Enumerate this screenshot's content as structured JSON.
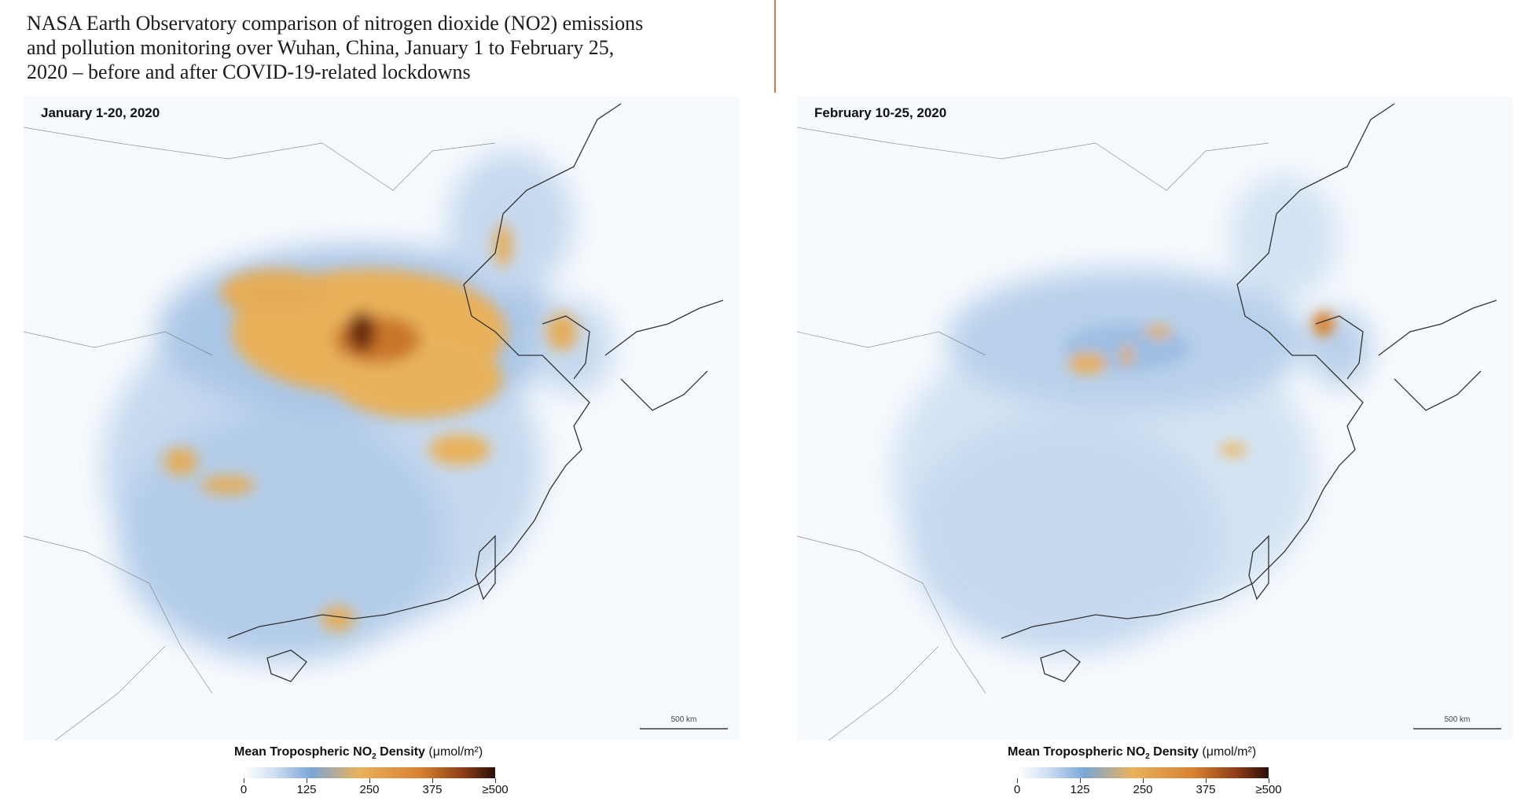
{
  "caption": {
    "line1": "NASA Earth Observatory comparison of nitrogen dioxide (NO2) emissions",
    "line2": "and pollution monitoring over Wuhan, China, January 1 to February 25,",
    "line3": "2020 – before and after COVID-19-related lockdowns"
  },
  "panels": [
    {
      "label": "January 1-20, 2020",
      "scale": "500 km",
      "legend": {
        "title_pre": "Mean Tropospheric NO",
        "title_sub": "2",
        "title_bold_end": " Density",
        "unit": " (μmol/m²)",
        "ticks": [
          "0",
          "125",
          "250",
          "375",
          "≥500"
        ]
      }
    },
    {
      "label": "February 10-25, 2020",
      "scale": "500 km",
      "legend": {
        "title_pre": "Mean Tropospheric NO",
        "title_sub": "2",
        "title_bold_end": " Density",
        "unit": " (μmol/m²)",
        "ticks": [
          "0",
          "125",
          "250",
          "375",
          "≥500"
        ]
      }
    }
  ],
  "colors": {
    "low": "#ffffff",
    "mid": "#7aa6d6",
    "high": "#e9b15a",
    "max": "#2b0f05",
    "divider": "#cf7b4c"
  }
}
